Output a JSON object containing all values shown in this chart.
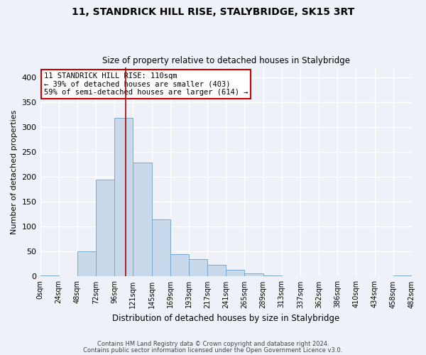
{
  "title": "11, STANDRICK HILL RISE, STALYBRIDGE, SK15 3RT",
  "subtitle": "Size of property relative to detached houses in Stalybridge",
  "xlabel": "Distribution of detached houses by size in Stalybridge",
  "ylabel": "Number of detached properties",
  "bar_color": "#c8d9ec",
  "bar_edge_color": "#7aa8cc",
  "background_color": "#eef2f8",
  "grid_color": "#ffffff",
  "vline_x": 110,
  "vline_color": "#aa0000",
  "bin_edges": [
    0,
    24,
    48,
    72,
    96,
    120,
    144,
    168,
    192,
    216,
    240,
    264,
    288,
    312,
    336,
    360,
    384,
    408,
    432,
    456,
    480
  ],
  "bin_labels": [
    "0sqm",
    "24sqm",
    "48sqm",
    "72sqm",
    "96sqm",
    "121sqm",
    "145sqm",
    "169sqm",
    "193sqm",
    "217sqm",
    "241sqm",
    "265sqm",
    "289sqm",
    "313sqm",
    "337sqm",
    "362sqm",
    "386sqm",
    "410sqm",
    "434sqm",
    "458sqm",
    "482sqm"
  ],
  "counts": [
    2,
    1,
    51,
    195,
    318,
    228,
    115,
    45,
    35,
    24,
    14,
    6,
    2,
    1,
    1,
    1,
    0,
    0,
    0,
    2
  ],
  "ylim": [
    0,
    420
  ],
  "yticks": [
    0,
    50,
    100,
    150,
    200,
    250,
    300,
    350,
    400
  ],
  "annotation_title": "11 STANDRICK HILL RISE: 110sqm",
  "annotation_line1": "← 39% of detached houses are smaller (403)",
  "annotation_line2": "59% of semi-detached houses are larger (614) →",
  "annotation_box_color": "#ffffff",
  "annotation_border_color": "#cc0000",
  "footer1": "Contains HM Land Registry data © Crown copyright and database right 2024.",
  "footer2": "Contains public sector information licensed under the Open Government Licence v3.0."
}
